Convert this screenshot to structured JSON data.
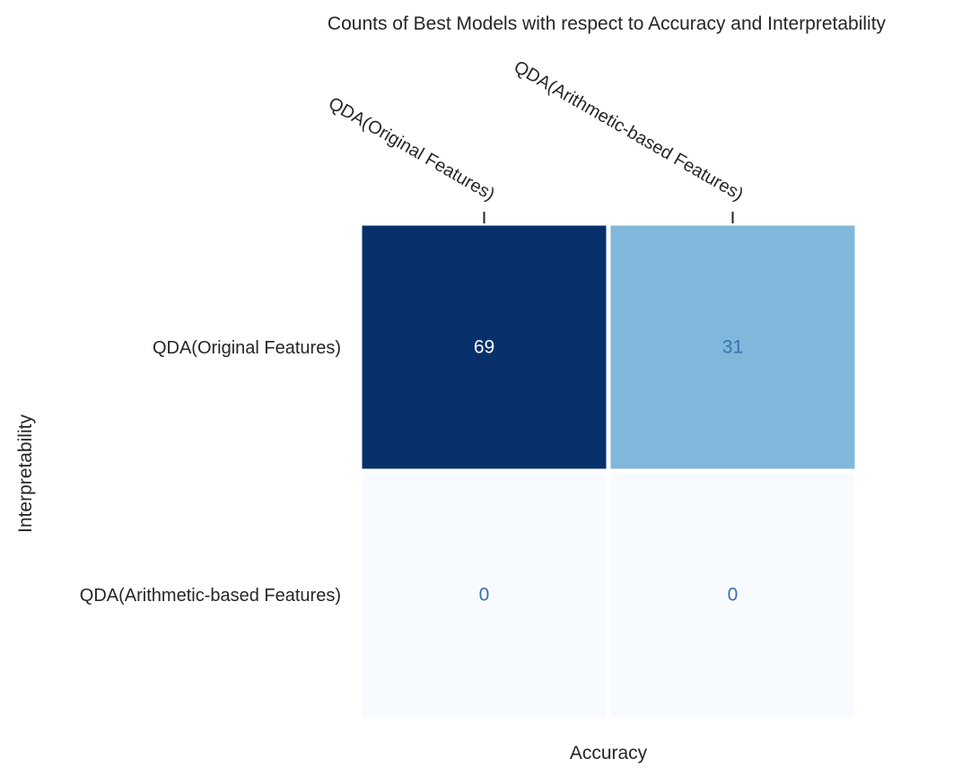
{
  "chart_data": {
    "type": "heatmap",
    "title": "Counts of Best Models with respect to Accuracy and Interpretability",
    "xlabel": "Accuracy",
    "ylabel": "Interpretability",
    "x_categories": [
      "QDA(Original Features)",
      "QDA(Arithmetic-based Features)"
    ],
    "y_categories": [
      "QDA(Original Features)",
      "QDA(Arithmetic-based Features)"
    ],
    "values": [
      [
        69,
        31
      ],
      [
        0,
        0
      ]
    ],
    "colormap": "Blues",
    "vmin": 0,
    "vmax": 69,
    "colorbar": false,
    "annotated": true
  },
  "colors": {
    "cell_low": "#f7fbff",
    "cell_mid": "#80b7da",
    "cell_high": "#08306b",
    "text_on_dark": "#ffffff",
    "text_on_light": "#3a6eb5",
    "cell_border": "#ffffff",
    "text": "#262626"
  }
}
